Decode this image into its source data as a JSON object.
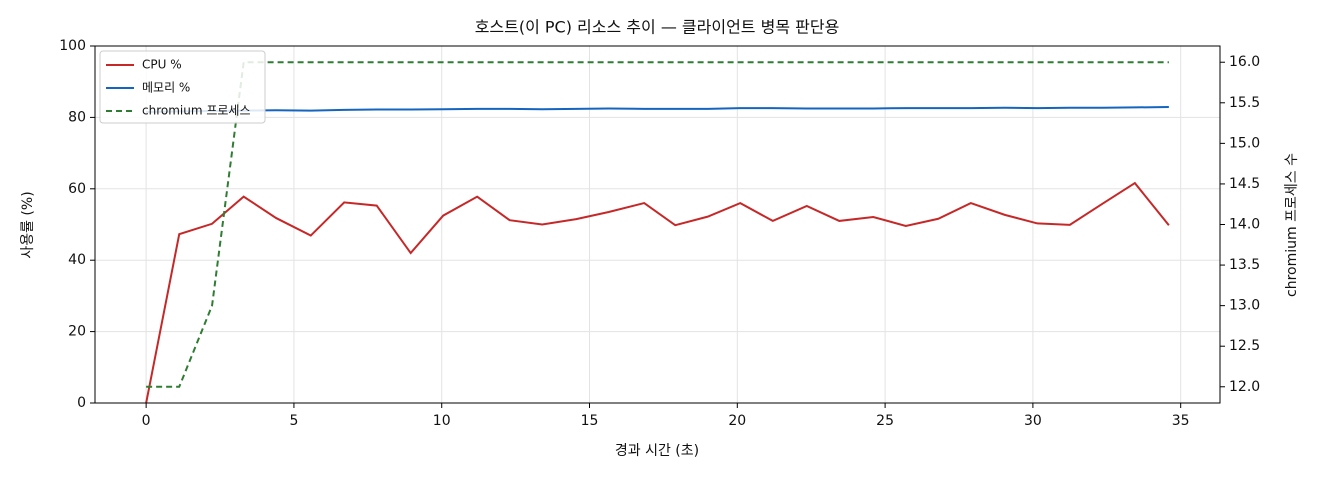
{
  "chart_data": {
    "type": "line",
    "title": "호스트(이 PC) 리소스 추이 — 클라이언트 병목 판단용",
    "xlabel": "경과 시간 (초)",
    "ylabel": "사용률 (%)",
    "y2label": "chromium 프로세스 수",
    "x": [
      0,
      1.12,
      2.23,
      3.3,
      4.4,
      5.57,
      6.7,
      7.8,
      8.95,
      10.05,
      11.2,
      12.3,
      13.4,
      14.55,
      15.65,
      16.85,
      17.9,
      19.0,
      20.1,
      21.2,
      22.35,
      23.45,
      24.6,
      25.7,
      26.8,
      27.9,
      29.05,
      30.15,
      31.25,
      32.35,
      33.45,
      34.6
    ],
    "series": [
      {
        "name": "CPU %",
        "color": "#c62828",
        "dash": false,
        "values": [
          0,
          47.3,
          50.2,
          57.8,
          51.8,
          46.9,
          56.2,
          55.3,
          42,
          52.5,
          57.8,
          51.2,
          50,
          51.5,
          53.5,
          56,
          49.8,
          52.2,
          56,
          51,
          55.2,
          51,
          52.1,
          49.6,
          51.6,
          56,
          52.7,
          50.3,
          49.9,
          55.8,
          61.6,
          49.8
        ]
      },
      {
        "name": "메모리 %",
        "color": "#1565c0",
        "dash": false,
        "values": [
          81.5,
          81.7,
          81.8,
          81.9,
          82,
          81.9,
          82.1,
          82.2,
          82.2,
          82.3,
          82.4,
          82.4,
          82.3,
          82.4,
          82.5,
          82.4,
          82.4,
          82.4,
          82.6,
          82.6,
          82.5,
          82.5,
          82.5,
          82.6,
          82.6,
          82.6,
          82.7,
          82.6,
          82.7,
          82.7,
          82.8,
          82.9
        ]
      },
      {
        "name": "chromium 프로세스",
        "color": "#2e7d32",
        "dash": true,
        "axis": "y2",
        "values": [
          12,
          12,
          13,
          16,
          16,
          16,
          16,
          16,
          16,
          16,
          16,
          16,
          16,
          16,
          16,
          16,
          16,
          16,
          16,
          16,
          16,
          16,
          16,
          16,
          16,
          16,
          16,
          16,
          16,
          16,
          16,
          16
        ]
      }
    ],
    "xlim": [
      -1.73,
      36.33
    ],
    "xticks": [
      0,
      5,
      10,
      15,
      20,
      25,
      30,
      35
    ],
    "ylim": [
      0,
      100
    ],
    "yticks": [
      0,
      20,
      40,
      60,
      80,
      100
    ],
    "y2lim": [
      11.8,
      16.2
    ],
    "y2ticks": [
      {
        "value": 12,
        "label": "12.0"
      },
      {
        "value": 12.5,
        "label": "12.5"
      },
      {
        "value": 13,
        "label": "13.0"
      },
      {
        "value": 13.5,
        "label": "13.5"
      },
      {
        "value": 14,
        "label": "14.0"
      },
      {
        "value": 14.5,
        "label": "14.5"
      },
      {
        "value": 15,
        "label": "15.0"
      },
      {
        "value": 15.5,
        "label": "15.5"
      },
      {
        "value": 16,
        "label": "16.0"
      }
    ],
    "grid": true,
    "legend": "upper-left"
  }
}
